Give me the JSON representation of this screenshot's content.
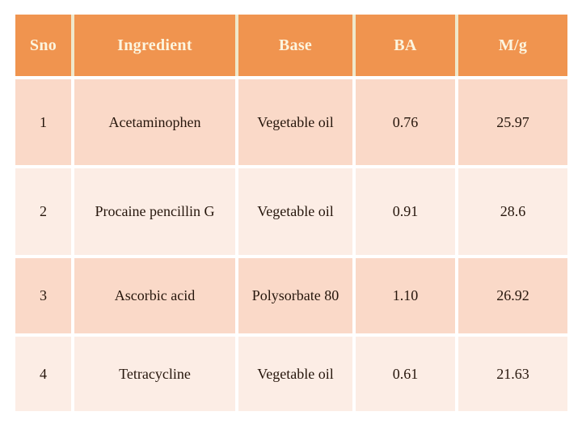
{
  "table": {
    "columns": [
      {
        "key": "sno",
        "label": "Sno"
      },
      {
        "key": "ingredient",
        "label": "Ingredient"
      },
      {
        "key": "base",
        "label": "Base"
      },
      {
        "key": "ba",
        "label": "BA"
      },
      {
        "key": "mg",
        "label": "M/g"
      }
    ],
    "rows": [
      [
        "1",
        "Acetaminophen",
        "Vegetable oil",
        "0.76",
        "25.97"
      ],
      [
        "2",
        "Procaine pencillin G",
        "Vegetable oil",
        "0.91",
        "28.6"
      ],
      [
        "3",
        "Ascorbic acid",
        "Polysorbate 80",
        "1.10",
        "26.92"
      ],
      [
        "4",
        "Tetracycline",
        "Vegetable oil",
        "0.61",
        "21.63"
      ]
    ]
  },
  "colors": {
    "header_bg": "#F0944F",
    "header_text": "#FCF5DF",
    "header_divider": "#EFE8CB",
    "row_odd_bg": "#FAD9C8",
    "row_even_bg": "#FCEDE5",
    "body_divider": "#FFFFFF",
    "body_text": "#26160C",
    "page_bg": "#FFFFFF"
  }
}
